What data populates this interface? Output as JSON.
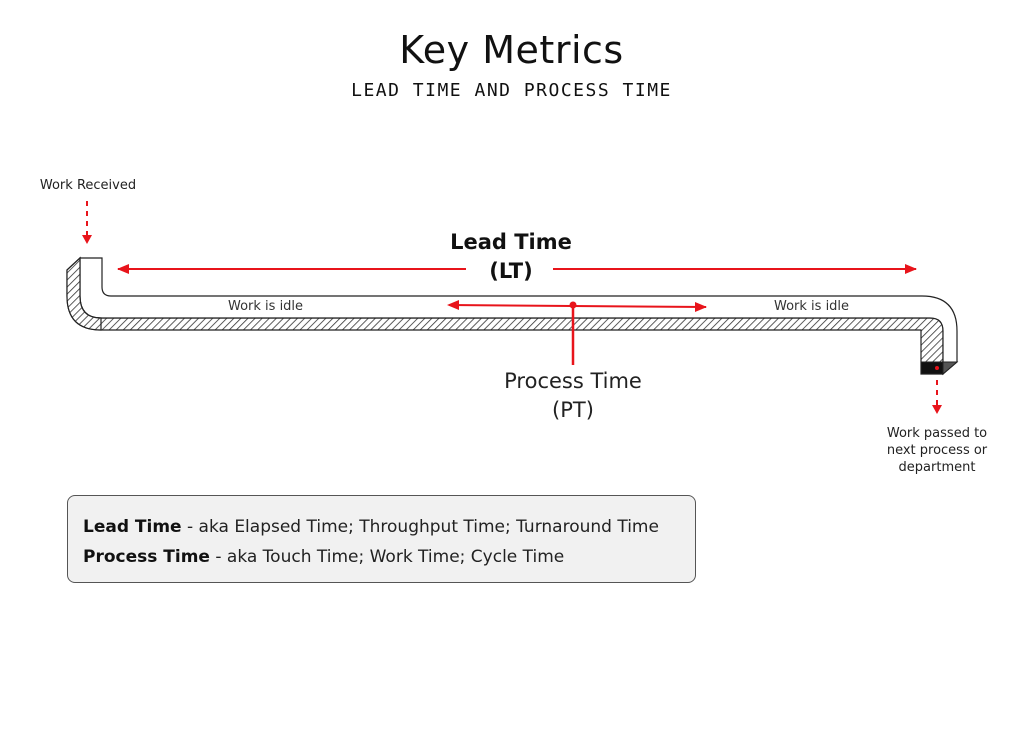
{
  "header": {
    "title": "Key Metrics",
    "subtitle": "LEAD TIME AND PROCESS TIME"
  },
  "diagram": {
    "work_received_label": "Work Received",
    "work_passed_label_lines": [
      "Work passed to",
      "next process or",
      "department"
    ],
    "idle_left_label": "Work is idle",
    "idle_right_label": "Work is idle",
    "lead_time": {
      "line1": "Lead Time",
      "line2": "(LT)"
    },
    "process_time": {
      "line1": "Process Time",
      "line2": "(PT)"
    },
    "colors": {
      "accent_red": "#e8141b",
      "pipe_stroke": "#222222",
      "hatch": "#333333",
      "box_fill": "#f1f1f1"
    }
  },
  "definitions": {
    "lead_time_term": "Lead Time",
    "lead_time_text": " - aka Elapsed Time; Throughput Time; Turnaround Time",
    "process_time_term": "Process Time",
    "process_time_text": " - aka Touch Time; Work Time; Cycle Time"
  }
}
